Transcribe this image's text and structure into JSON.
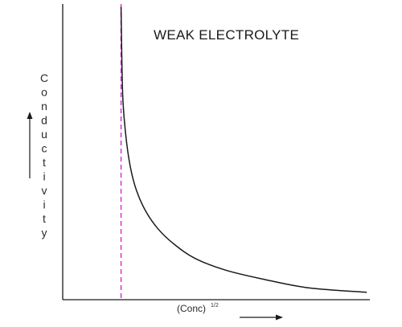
{
  "chart_data": {
    "type": "line",
    "title": "WEAK ELECTROLYTE",
    "ylabel": "Conductivity",
    "xlabel": "(Conc)",
    "xlabel_superscript": "1/2",
    "x_arrow": true,
    "y_arrow": true,
    "grid": false,
    "legend": "none",
    "tick_labels": false,
    "xlim": [
      0,
      1
    ],
    "ylim": [
      0,
      1
    ],
    "series": [
      {
        "style": "solid",
        "color": "#1a1a1a",
        "x": [
          0.19,
          0.195,
          0.205,
          0.22,
          0.24,
          0.27,
          0.31,
          0.36,
          0.43,
          0.53,
          0.65,
          0.8,
          0.99
        ],
        "y": [
          0.99,
          0.7,
          0.56,
          0.45,
          0.37,
          0.3,
          0.24,
          0.19,
          0.14,
          0.1,
          0.07,
          0.04,
          0.025
        ]
      }
    ],
    "reference_lines": [
      {
        "orientation": "vertical",
        "x": 0.19,
        "style": "dashed",
        "color": "#d63ad8"
      }
    ]
  }
}
